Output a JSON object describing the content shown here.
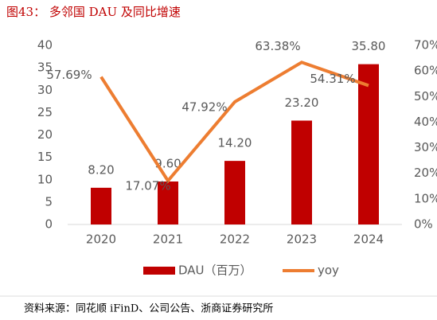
{
  "chart_data": {
    "type": "combo",
    "title": "图43： 多邻国 DAU 及同比增速",
    "source": "资料来源：同花顺 iFinD、公司公告、浙商证券研究所",
    "categories": [
      "2020",
      "2021",
      "2022",
      "2023",
      "2024"
    ],
    "series": [
      {
        "name": "DAU（百万）",
        "type": "bar",
        "color": "#c00000",
        "values": [
          8.2,
          9.6,
          14.2,
          23.2,
          35.8
        ],
        "value_labels": [
          "8.20",
          "9.60",
          "14.20",
          "23.20",
          "35.80"
        ]
      },
      {
        "name": "yoy",
        "type": "line",
        "axis": "y2",
        "color": "#ed7d31",
        "values": [
          57.69,
          17.07,
          47.92,
          63.38,
          54.31
        ],
        "value_labels": [
          "57.69%",
          "17.07%",
          "47.92%",
          "63.38%",
          "54.31%"
        ]
      }
    ],
    "ylim": [
      0,
      40
    ],
    "yticks": [
      0,
      5,
      10,
      15,
      20,
      25,
      30,
      35,
      40
    ],
    "y2lim": [
      0,
      70
    ],
    "y2ticks": [
      {
        "value": 0,
        "label": "0%"
      },
      {
        "value": 10,
        "label": "10%"
      },
      {
        "value": 20,
        "label": "20%"
      },
      {
        "value": 30,
        "label": "30%"
      },
      {
        "value": 40,
        "label": "40%"
      },
      {
        "value": 50,
        "label": "50%"
      },
      {
        "value": 60,
        "label": "60%"
      },
      {
        "value": 70,
        "label": "70%"
      }
    ],
    "legend": "bottom"
  }
}
